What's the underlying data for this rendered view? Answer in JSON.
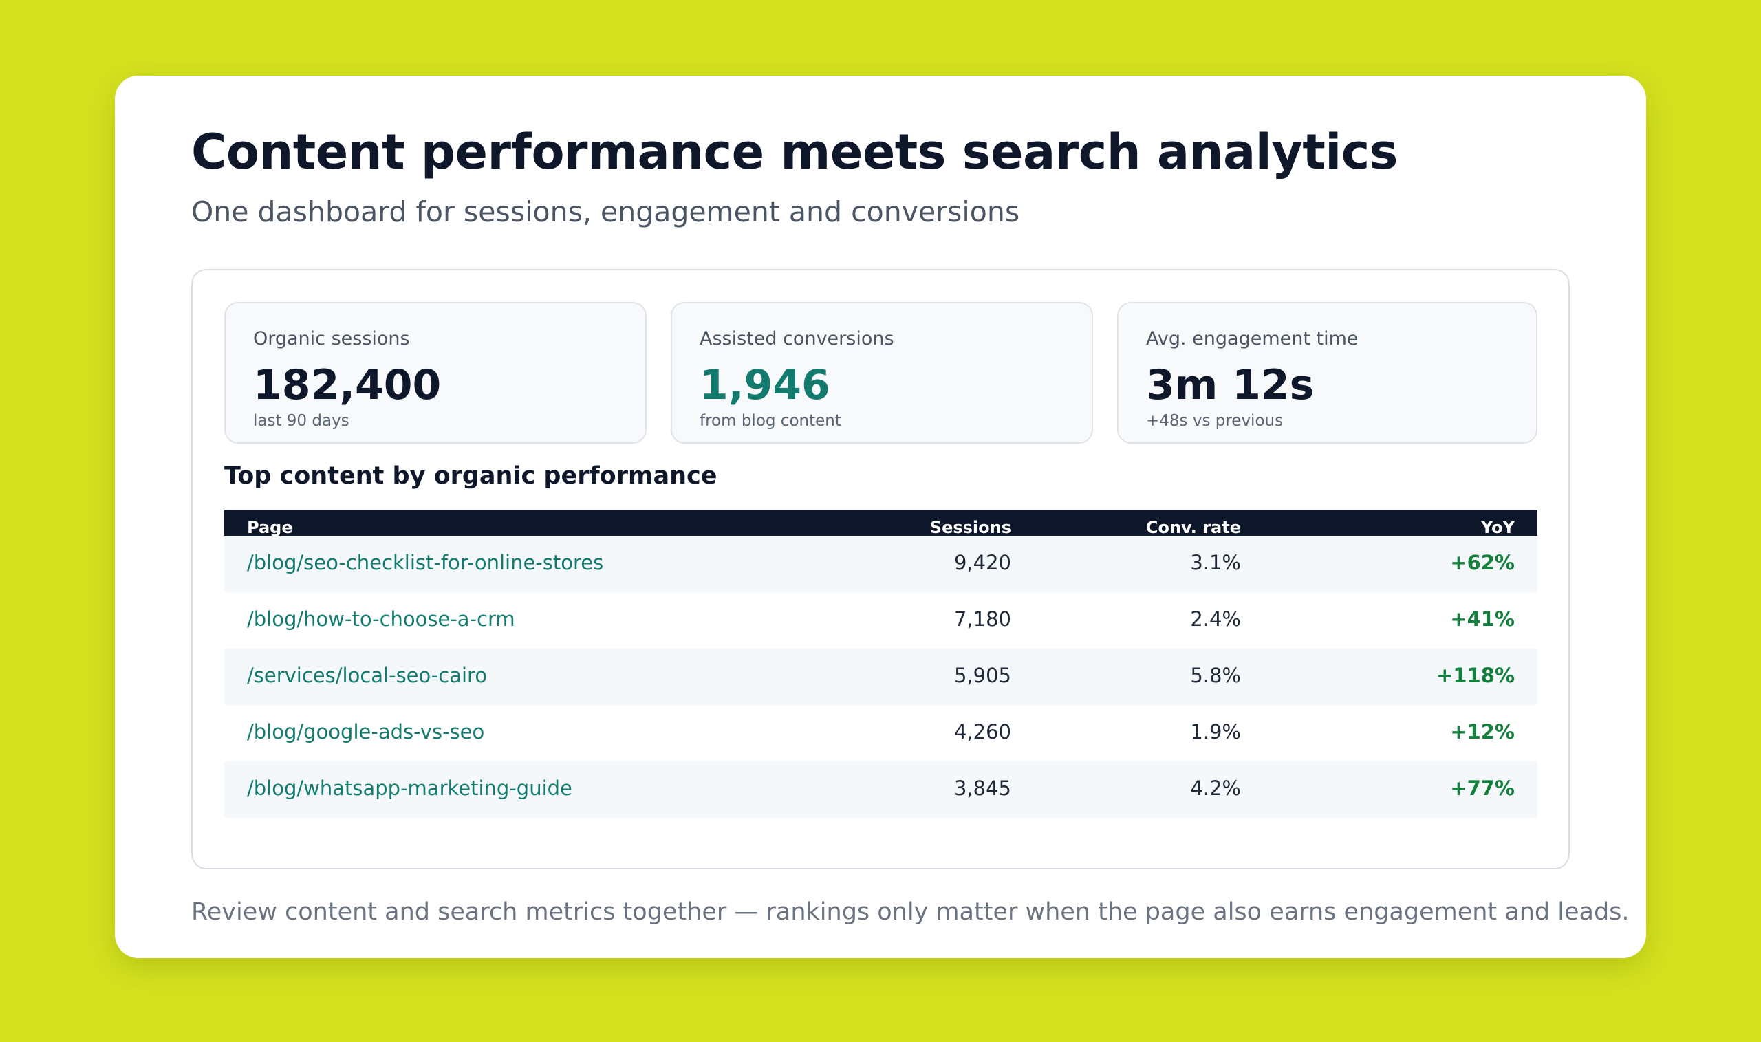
{
  "header": {
    "title": "Content performance meets search analytics",
    "subtitle": "One dashboard for sessions, engagement and conversions"
  },
  "kpis": [
    {
      "label": "Organic sessions",
      "value": "182,400",
      "note": "last 90 days"
    },
    {
      "label": "Assisted conversions",
      "value": "1,946",
      "note": "from blog content"
    },
    {
      "label": "Avg. engagement time",
      "value": "3m 12s",
      "note": "+48s vs previous"
    }
  ],
  "table": {
    "title": "Top content by organic performance",
    "columns": [
      "Page",
      "Sessions",
      "Conv. rate",
      "YoY"
    ],
    "rows": [
      {
        "page": "/blog/seo-checklist-for-online-stores",
        "sessions": "9,420",
        "conv_rate": "3.1%",
        "yoy": "+62%"
      },
      {
        "page": "/blog/how-to-choose-a-crm",
        "sessions": "7,180",
        "conv_rate": "2.4%",
        "yoy": "+41%"
      },
      {
        "page": "/services/local-seo-cairo",
        "sessions": "5,905",
        "conv_rate": "5.8%",
        "yoy": "+118%"
      },
      {
        "page": "/blog/google-ads-vs-seo",
        "sessions": "4,260",
        "conv_rate": "1.9%",
        "yoy": "+12%"
      },
      {
        "page": "/blog/whatsapp-marketing-guide",
        "sessions": "3,845",
        "conv_rate": "4.2%",
        "yoy": "+77%"
      }
    ]
  },
  "footer": {
    "note": "Review content and search metrics together — rankings only matter when the page also earns engagement and leads."
  },
  "colors": {
    "background": "#d4e11e",
    "accent": "#137a6e",
    "positive": "#15803d",
    "header_dark": "#0f172a"
  }
}
